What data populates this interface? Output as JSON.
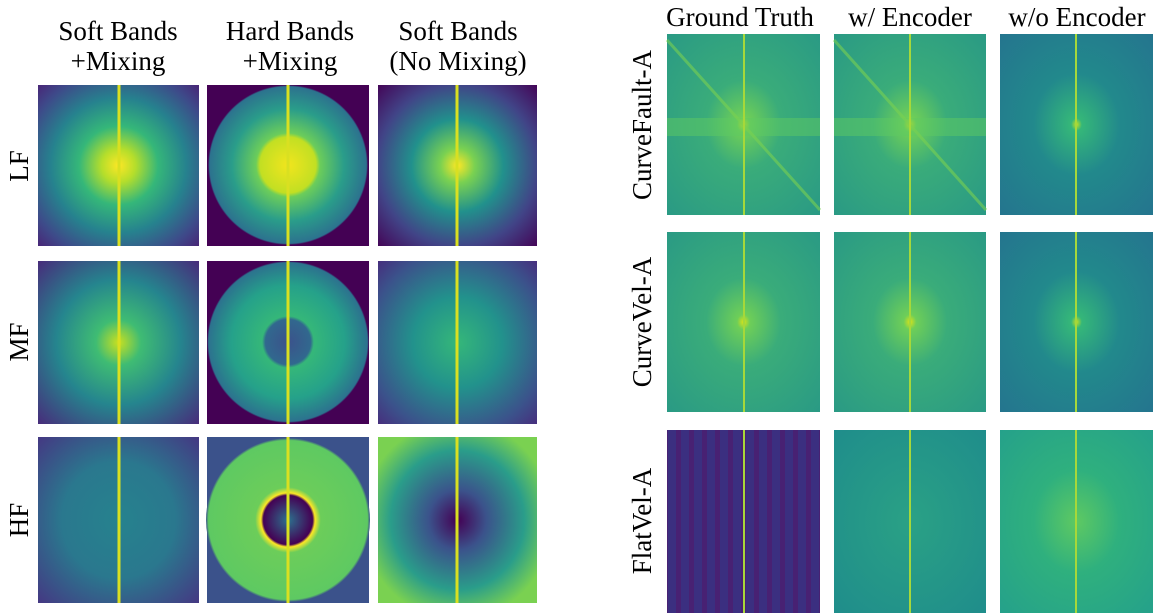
{
  "left_panel": {
    "columns": [
      {
        "lines": [
          "Soft Bands",
          "+Mixing"
        ]
      },
      {
        "lines": [
          "Hard Bands",
          "+Mixing"
        ]
      },
      {
        "lines": [
          "Soft Bands",
          "(No Mixing)"
        ]
      }
    ],
    "rows": [
      "LF",
      "MF",
      "HF"
    ]
  },
  "right_panel": {
    "columns": [
      "Ground Truth",
      "w/ Encoder",
      "w/o Encoder"
    ],
    "rows": [
      "CurveFault-A",
      "CurveVel-A",
      "FlatVel-A"
    ]
  }
}
